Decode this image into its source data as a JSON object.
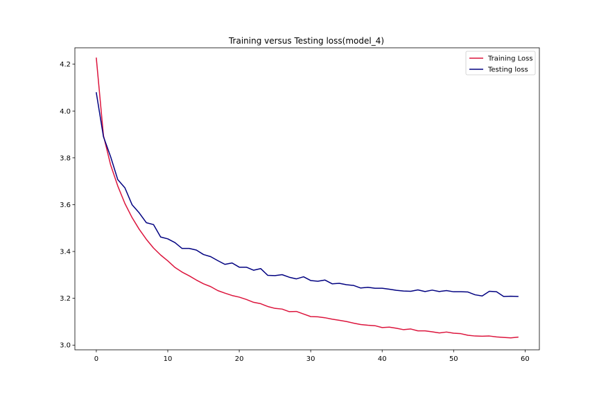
{
  "chart_data": {
    "type": "line",
    "title": "Training versus Testing loss(model_4)",
    "xlabel": "",
    "ylabel": "",
    "xlim": [
      -3,
      62
    ],
    "ylim": [
      2.98,
      4.27
    ],
    "x_ticks": [
      0,
      10,
      20,
      30,
      40,
      50,
      60
    ],
    "y_ticks": [
      3.0,
      3.2,
      3.4,
      3.6,
      3.8,
      4.0,
      4.2
    ],
    "x_tick_labels": [
      "0",
      "10",
      "20",
      "30",
      "40",
      "50",
      "60"
    ],
    "y_tick_labels": [
      "3.0",
      "3.2",
      "3.4",
      "3.6",
      "3.8",
      "4.0",
      "4.2"
    ],
    "grid": false,
    "legend_position": "top-right",
    "x": [
      0,
      1,
      2,
      3,
      4,
      5,
      6,
      7,
      8,
      9,
      10,
      11,
      12,
      13,
      14,
      15,
      16,
      17,
      18,
      19,
      20,
      21,
      22,
      23,
      24,
      25,
      26,
      27,
      28,
      29,
      30,
      31,
      32,
      33,
      34,
      35,
      36,
      37,
      38,
      39,
      40,
      41,
      42,
      43,
      44,
      45,
      46,
      47,
      48,
      49,
      50,
      51,
      52,
      53,
      54,
      55,
      56,
      57,
      58,
      59
    ],
    "series": [
      {
        "name": "Training Loss",
        "color": "#dc143c",
        "values": [
          4.226,
          3.895,
          3.77,
          3.68,
          3.605,
          3.545,
          3.495,
          3.452,
          3.415,
          3.385,
          3.36,
          3.332,
          3.312,
          3.296,
          3.278,
          3.262,
          3.25,
          3.233,
          3.222,
          3.212,
          3.205,
          3.195,
          3.183,
          3.177,
          3.165,
          3.157,
          3.154,
          3.143,
          3.144,
          3.133,
          3.122,
          3.121,
          3.117,
          3.111,
          3.106,
          3.101,
          3.094,
          3.088,
          3.085,
          3.083,
          3.075,
          3.077,
          3.072,
          3.066,
          3.069,
          3.061,
          3.061,
          3.057,
          3.052,
          3.056,
          3.051,
          3.049,
          3.042,
          3.039,
          3.038,
          3.039,
          3.035,
          3.033,
          3.031,
          3.034
        ]
      },
      {
        "name": "Testing loss",
        "color": "#000080",
        "values": [
          4.078,
          3.89,
          3.805,
          3.707,
          3.672,
          3.6,
          3.565,
          3.523,
          3.515,
          3.462,
          3.454,
          3.438,
          3.413,
          3.413,
          3.406,
          3.387,
          3.378,
          3.361,
          3.345,
          3.351,
          3.333,
          3.333,
          3.32,
          3.327,
          3.298,
          3.297,
          3.301,
          3.29,
          3.283,
          3.292,
          3.276,
          3.273,
          3.278,
          3.262,
          3.264,
          3.258,
          3.255,
          3.244,
          3.247,
          3.243,
          3.243,
          3.239,
          3.234,
          3.231,
          3.23,
          3.236,
          3.229,
          3.235,
          3.229,
          3.233,
          3.228,
          3.228,
          3.227,
          3.215,
          3.21,
          3.23,
          3.228,
          3.208,
          3.209,
          3.208
        ]
      }
    ]
  }
}
